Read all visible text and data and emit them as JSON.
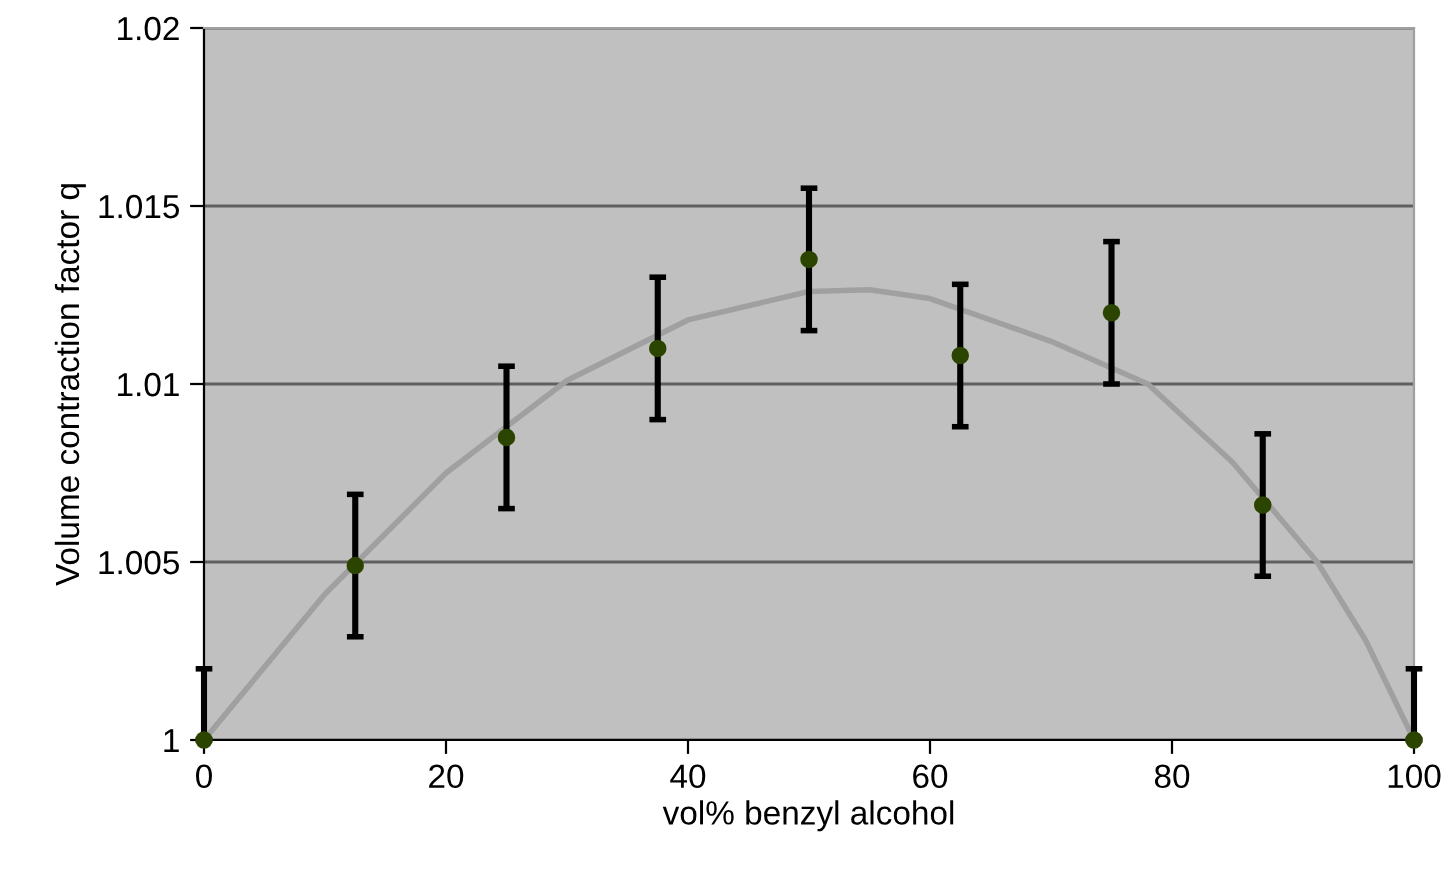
{
  "chart_data": {
    "type": "scatter",
    "xlabel": "vol% benzyl alcohol",
    "ylabel": "Volume contraction factor q",
    "xlim": [
      0,
      100
    ],
    "xticks": [
      0,
      20,
      40,
      60,
      80,
      100
    ],
    "ylim": [
      1,
      1.02
    ],
    "yticks": [
      1,
      1.005,
      1.01,
      1.015,
      1.02
    ],
    "grid": "y",
    "series": [
      {
        "color": "#2b4400",
        "marker": "circle",
        "x": [
          0,
          12.5,
          25,
          37.5,
          50,
          62.5,
          75,
          87.5,
          100
        ],
        "values": [
          1,
          1.0049,
          1.0085,
          1.011,
          1.0135,
          1.0108,
          1.012,
          1.0066,
          1
        ],
        "errors": [
          [
            1,
            1.002
          ],
          0.002,
          0.002,
          0.002,
          0.002,
          0.002,
          0.002,
          0.002,
          [
            1,
            1.002
          ]
        ]
      },
      {
        "type": "line",
        "color": "#a0a0a0",
        "marker": "none",
        "x": [
          0,
          10,
          20,
          30,
          40,
          50,
          55,
          60,
          70,
          78,
          85,
          92,
          96,
          100
        ],
        "values": [
          1,
          1.0041,
          1.0075,
          1.0101,
          1.0118,
          1.0126,
          1.01265,
          1.0124,
          1.0112,
          1.01,
          1.0078,
          1.005,
          1.0028,
          1
        ]
      }
    ]
  }
}
